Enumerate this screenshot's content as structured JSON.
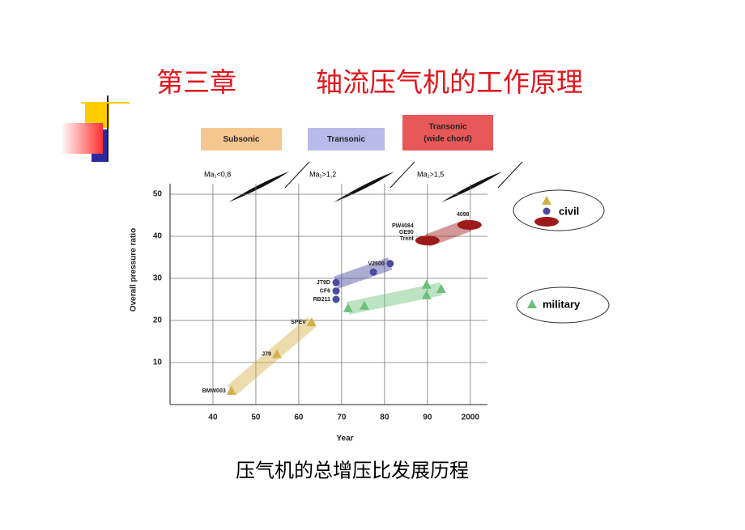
{
  "slide_title": {
    "chapter": "第三章",
    "topic": "轴流压气机的工作原理"
  },
  "caption": "压气机的总增压比发展历程",
  "regimes": [
    {
      "label": "Subsonic",
      "mach": "Ma₁<0,8"
    },
    {
      "label": "Transonic",
      "mach": "Ma₁>1,2"
    },
    {
      "label": "Transonic\n(wide chord)",
      "mach": "Ma₁>1,5"
    }
  ],
  "chart_data": {
    "type": "scatter",
    "x_label": "Year",
    "y_label": "Overall pressure ratio",
    "xlim": [
      1930,
      2004
    ],
    "ylim": [
      0,
      52.5
    ],
    "xticks": [
      {
        "value": 1940,
        "label": "40"
      },
      {
        "value": 1950,
        "label": "50"
      },
      {
        "value": 1960,
        "label": "60"
      },
      {
        "value": 1970,
        "label": "70"
      },
      {
        "value": 1980,
        "label": "80"
      },
      {
        "value": 1990,
        "label": "90"
      },
      2000
    ],
    "yticks": [
      10,
      20,
      30,
      40,
      50
    ],
    "grid": true,
    "legend": [
      "civil",
      "military"
    ],
    "series": [
      {
        "color": "#d2b04a",
        "marker": "triangle",
        "x": [
          1944.3,
          1954.9,
          1963
        ],
        "values": [
          3.3,
          12,
          19.6
        ],
        "labels": [
          "BMW003",
          "J79",
          "SPEV"
        ]
      },
      {
        "color": "#4a4aa0",
        "marker": "circle",
        "x": [
          1968.7,
          1968.7,
          1968.7,
          1977.4,
          1981.3
        ],
        "values": [
          29,
          27,
          25,
          31.5,
          33.5
        ],
        "labels": [
          "JT9D",
          "CF6",
          "RB211",
          null,
          "V2500"
        ]
      },
      {
        "color": "#9e1a1a",
        "marker": "ellipse",
        "x": [
          1990,
          1999.8
        ],
        "values": [
          39,
          42.7
        ],
        "labels": [
          "PW4084\nGE90\nTrent",
          "4098"
        ]
      },
      {
        "color": "#6cc07a",
        "marker": "triangle",
        "x": [
          1971.5,
          1975.3,
          1989.8,
          1989.8,
          1993.2
        ],
        "values": [
          22.9,
          23.5,
          28.5,
          26,
          27.5
        ],
        "labels": [
          null,
          null,
          null,
          null,
          null
        ]
      }
    ]
  }
}
